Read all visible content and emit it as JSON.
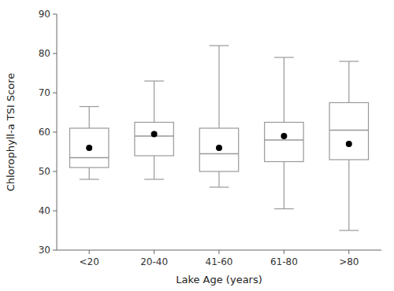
{
  "chart_data": {
    "type": "box",
    "categories": [
      "<20",
      "20-40",
      "41-60",
      "61-80",
      ">80"
    ],
    "boxes": [
      {
        "q1": 51.0,
        "median": 53.5,
        "q3": 61.0,
        "whislo": 48.0,
        "whishi": 66.5,
        "mean": 56.0
      },
      {
        "q1": 54.0,
        "median": 59.0,
        "q3": 62.5,
        "whislo": 48.0,
        "whishi": 73.0,
        "mean": 59.5
      },
      {
        "q1": 50.0,
        "median": 54.5,
        "q3": 61.0,
        "whislo": 46.0,
        "whishi": 82.0,
        "mean": 56.0
      },
      {
        "q1": 52.5,
        "median": 58.0,
        "q3": 62.5,
        "whislo": 40.5,
        "whishi": 79.0,
        "mean": 59.0
      },
      {
        "q1": 53.0,
        "median": 60.5,
        "q3": 67.5,
        "whislo": 35.0,
        "whishi": 78.0,
        "mean": 57.0
      }
    ],
    "xlabel": "Lake Age (years)",
    "ylabel": "Chlorophyll-a TSI Score",
    "ylim": [
      30,
      90
    ],
    "yticks": [
      30,
      40,
      50,
      60,
      70,
      80,
      90
    ],
    "color": "#999999",
    "marker": "circle",
    "grid": false
  }
}
